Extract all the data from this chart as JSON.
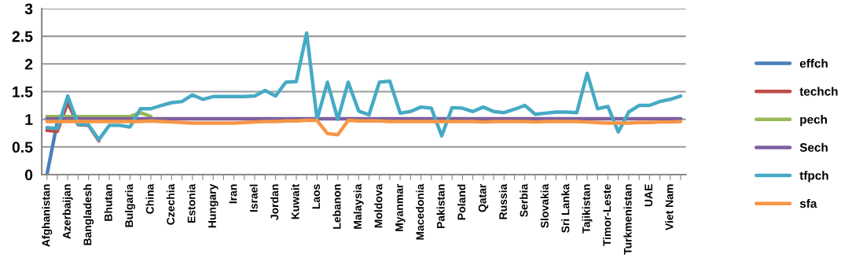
{
  "chart_data": {
    "type": "line",
    "categories": [
      "Afghanistan",
      null,
      "Azerbaijan",
      null,
      "Bangladesh",
      null,
      "Bhutan",
      null,
      "Bulgaria",
      null,
      "China",
      null,
      "Czechia",
      null,
      "Estonia",
      null,
      "Hungary",
      null,
      "Iran",
      null,
      "Israel",
      null,
      "Jordan",
      null,
      "Kuwait",
      null,
      "Laos",
      null,
      "Lebanon",
      null,
      "Malaysia",
      null,
      "Moldova",
      null,
      "Myanmar",
      null,
      "Macedonia",
      null,
      "Pakistan",
      null,
      "Poland",
      null,
      "Qatar",
      null,
      "Russia",
      null,
      "Serbia",
      null,
      "Slovakia",
      null,
      "Sri Lanka",
      null,
      "Tajikistan",
      null,
      "Timor-Leste",
      null,
      "Turkmenistan",
      null,
      "UAE",
      null,
      "Viet Nam",
      null
    ],
    "series": [
      {
        "name": "effch",
        "color": "#4a7ebb",
        "values": [
          0,
          0.95,
          null,
          null,
          null,
          null,
          null,
          null,
          null,
          null,
          null,
          null,
          null,
          null,
          null,
          null,
          null,
          null,
          null,
          null,
          null,
          null,
          null,
          null,
          null,
          null,
          null,
          null,
          null,
          null,
          null,
          null,
          null,
          null,
          null,
          null,
          null,
          null,
          null,
          null,
          null,
          null,
          null,
          null,
          null,
          null,
          null,
          null,
          null,
          null,
          null,
          null,
          null,
          null,
          null,
          null,
          null,
          null,
          null,
          null,
          null,
          null
        ]
      },
      {
        "name": "techch",
        "color": "#be4b48",
        "values": [
          0.8,
          0.78,
          1.3,
          0.9,
          0.89,
          0.61,
          null,
          null,
          null,
          null,
          null,
          null,
          null,
          null,
          null,
          null,
          null,
          null,
          null,
          null,
          null,
          null,
          null,
          null,
          null,
          null,
          null,
          null,
          null,
          null,
          null,
          null,
          null,
          null,
          null,
          null,
          null,
          null,
          null,
          null,
          null,
          null,
          null,
          null,
          null,
          null,
          null,
          null,
          null,
          null,
          null,
          null,
          null,
          null,
          null,
          null,
          null,
          null,
          null,
          null,
          null,
          null
        ]
      },
      {
        "name": "pech",
        "color": "#98b954",
        "values": [
          1.05,
          1.05,
          1.05,
          1.05,
          1.05,
          1.05,
          1.05,
          1.05,
          1.05,
          1.12,
          1.05,
          null,
          null,
          null,
          null,
          null,
          null,
          null,
          null,
          null,
          null,
          null,
          null,
          null,
          null,
          null,
          null,
          null,
          null,
          null,
          null,
          null,
          null,
          null,
          null,
          null,
          null,
          null,
          null,
          null,
          null,
          null,
          null,
          null,
          null,
          null,
          null,
          null,
          null,
          null,
          null,
          null,
          null,
          null,
          null,
          null,
          null,
          null,
          null,
          null,
          null,
          null
        ]
      },
      {
        "name": "Sech",
        "color": "#7d60a0",
        "values": [
          1.01,
          1.01,
          1.01,
          1.01,
          1.01,
          1.01,
          1.01,
          1.01,
          1.01,
          1.01,
          1.01,
          1.01,
          1.01,
          1.01,
          1.01,
          1.01,
          1.01,
          1.01,
          1.01,
          1.01,
          1.01,
          1.01,
          1.01,
          1.01,
          1.01,
          1.01,
          1.01,
          1.01,
          1.01,
          1.01,
          1.01,
          1.01,
          1.01,
          1.01,
          1.01,
          1.01,
          1.01,
          1.01,
          1.01,
          1.01,
          1.01,
          1.01,
          1.01,
          1.01,
          1.01,
          1.01,
          1.01,
          1.01,
          1.01,
          1.01,
          1.01,
          1.01,
          1.01,
          1.01,
          1.01,
          1.01,
          1.01,
          1.01,
          1.01,
          1.01,
          1.01,
          1.01
        ]
      },
      {
        "name": "tfpch",
        "color": "#46aac5",
        "values": [
          0.85,
          0.83,
          1.42,
          0.91,
          0.9,
          0.63,
          0.89,
          0.89,
          0.86,
          1.19,
          1.19,
          1.25,
          1.3,
          1.32,
          1.44,
          1.36,
          1.41,
          1.41,
          1.41,
          1.41,
          1.42,
          1.52,
          1.42,
          1.67,
          1.68,
          2.56,
          1.0,
          1.67,
          1.0,
          1.67,
          1.15,
          1.08,
          1.67,
          1.69,
          1.11,
          1.14,
          1.22,
          1.2,
          0.7,
          1.21,
          1.2,
          1.14,
          1.22,
          1.14,
          1.12,
          1.18,
          1.25,
          1.09,
          1.11,
          1.13,
          1.13,
          1.12,
          1.83,
          1.19,
          1.23,
          0.77,
          1.13,
          1.25,
          1.25,
          1.32,
          1.36,
          1.42
        ]
      },
      {
        "name": "sfa",
        "color": "#f79646",
        "values": [
          0.96,
          0.96,
          0.96,
          0.96,
          0.96,
          0.96,
          0.96,
          0.96,
          0.96,
          0.96,
          0.97,
          0.96,
          0.95,
          0.94,
          0.93,
          0.93,
          0.93,
          0.93,
          0.93,
          0.94,
          0.95,
          0.96,
          0.96,
          0.97,
          0.97,
          0.98,
          0.98,
          0.74,
          0.72,
          0.98,
          0.97,
          0.97,
          0.97,
          0.96,
          0.96,
          0.96,
          0.96,
          0.96,
          0.96,
          0.96,
          0.96,
          0.96,
          0.95,
          0.96,
          0.96,
          0.96,
          0.96,
          0.95,
          0.96,
          0.96,
          0.96,
          0.96,
          0.95,
          0.94,
          0.93,
          0.93,
          0.93,
          0.94,
          0.94,
          0.95,
          0.95,
          0.96
        ]
      }
    ],
    "ylim": [
      0,
      3
    ],
    "yticks": [
      0,
      0.5,
      1,
      1.5,
      2,
      2.5,
      3
    ],
    "grid": "y",
    "legend": "right",
    "marker": "none",
    "line_style": "solid"
  }
}
